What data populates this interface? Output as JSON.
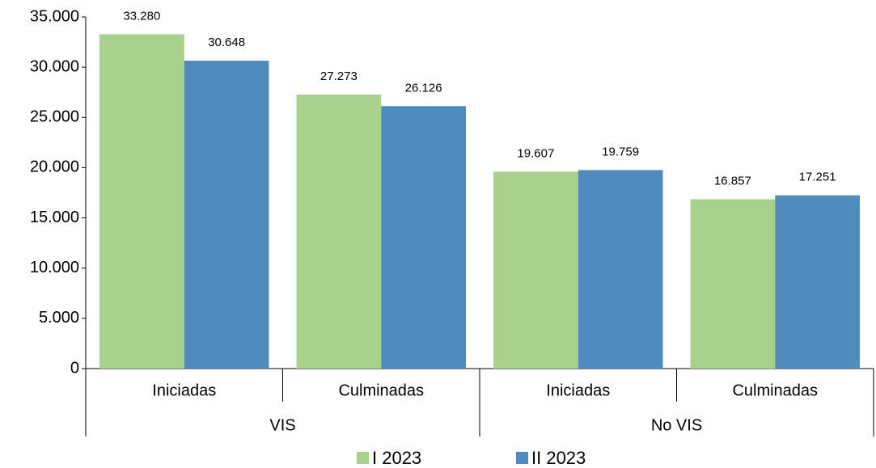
{
  "chart_data": {
    "type": "bar",
    "categories": [
      "Iniciadas",
      "Culminadas",
      "Iniciadas",
      "Culminadas"
    ],
    "groups": [
      "VIS",
      "No VIS"
    ],
    "series": [
      {
        "name": "I 2023",
        "color": "#a9d18e",
        "values": [
          33280,
          27273,
          19607,
          16857
        ],
        "value_labels": [
          "33.280",
          "27.273",
          "19.607",
          "16.857"
        ]
      },
      {
        "name": "II 2023",
        "color": "#4f8bbd",
        "values": [
          30648,
          26126,
          19759,
          17251
        ],
        "value_labels": [
          "30.648",
          "26.126",
          "19.759",
          "17.251"
        ]
      }
    ],
    "ylim": [
      0,
      35000
    ],
    "yticks": [
      0,
      {
        "value": 5000,
        "label": "5.000"
      },
      {
        "value": 10000,
        "label": "10.000"
      },
      {
        "value": 15000,
        "label": "15.000"
      },
      {
        "value": 20000,
        "label": "20.000"
      },
      {
        "value": 25000,
        "label": "25.000"
      },
      {
        "value": 30000,
        "label": "30.000"
      },
      {
        "value": 35000,
        "label": "35.000"
      }
    ],
    "grid": false
  }
}
